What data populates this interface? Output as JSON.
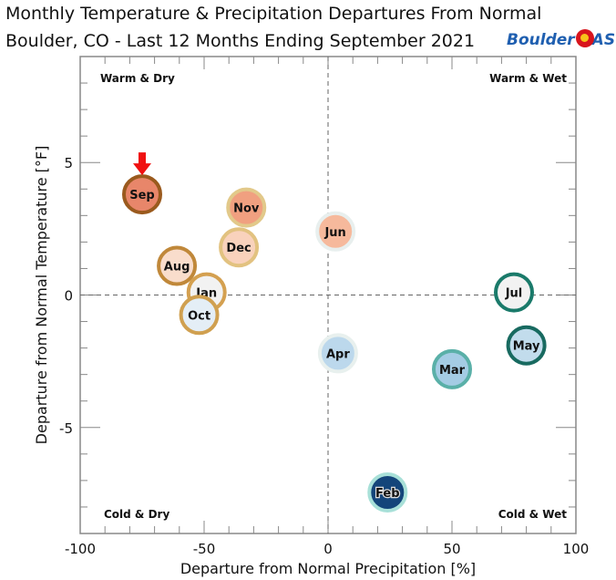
{
  "chart_data": {
    "type": "scatter",
    "title": "Monthly Temperature & Precipitation Departures From Normal",
    "subtitle": "Boulder, CO - Last 12 Months Ending September 2021",
    "xlabel": "Departure from Normal Precipitation [%]",
    "ylabel": "Departure from Normal Temperature [°F]",
    "xlim": [
      -100,
      100
    ],
    "ylim": [
      -9,
      9
    ],
    "xticks": [
      -100,
      -50,
      0,
      50,
      100
    ],
    "yticks": [
      -5,
      0,
      5
    ],
    "quadrant_labels": {
      "top_left": "Warm & Dry",
      "top_right": "Warm & Wet",
      "bottom_left": "Cold & Dry",
      "bottom_right": "Cold & Wet"
    },
    "highlight": "Sep",
    "points": [
      {
        "label": "Sep",
        "x": -75,
        "y": 3.8,
        "fill": "#e8866a",
        "border": "#9a5a1e"
      },
      {
        "label": "Nov",
        "x": -33,
        "y": 3.3,
        "fill": "#f0a080",
        "border": "#e2c98a"
      },
      {
        "label": "Dec",
        "x": -36,
        "y": 1.8,
        "fill": "#f9d2bc",
        "border": "#e2c280"
      },
      {
        "label": "Jun",
        "x": 3,
        "y": 2.4,
        "fill": "#f6b99c",
        "border": "#e8efee"
      },
      {
        "label": "Aug",
        "x": -61,
        "y": 1.1,
        "fill": "#f9ddcc",
        "border": "#c0883a"
      },
      {
        "label": "Jan",
        "x": -49,
        "y": 0.1,
        "fill": "#f2f2f2",
        "border": "#d4a050"
      },
      {
        "label": "Oct",
        "x": -52,
        "y": -0.75,
        "fill": "#e4eef6",
        "border": "#d0a050"
      },
      {
        "label": "Jul",
        "x": 75,
        "y": 0.1,
        "fill": "#f2f2f2",
        "border": "#1a7a6a"
      },
      {
        "label": "May",
        "x": 80,
        "y": -1.9,
        "fill": "#c2dcec",
        "border": "#186a60"
      },
      {
        "label": "Apr",
        "x": 4,
        "y": -2.2,
        "fill": "#bcd8ec",
        "border": "#e8f0ee"
      },
      {
        "label": "Mar",
        "x": 50,
        "y": -2.8,
        "fill": "#a4cce4",
        "border": "#5ab0a8"
      },
      {
        "label": "Feb",
        "x": 24,
        "y": -7.45,
        "fill": "#14457a",
        "border": "#a8e0d8"
      }
    ]
  },
  "logo": {
    "text1": "Boulder",
    "text2": "AST"
  }
}
